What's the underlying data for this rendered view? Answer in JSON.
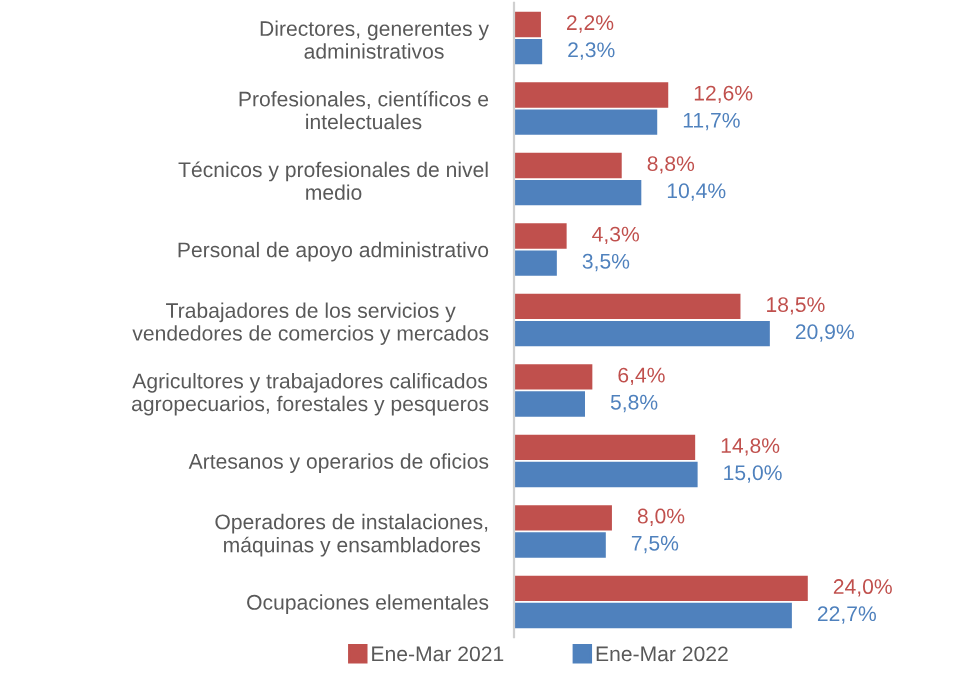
{
  "chart_data": {
    "type": "bar",
    "orientation": "horizontal",
    "legend": "bottom",
    "categories": [
      "Directores, generentes y\nadministrativos",
      "Profesionales, científicos e\nintelectuales",
      "Técnicos y profesionales de nivel\nmedio",
      "Personal de apoyo administrativo",
      "Trabajadores de los servicios y\nvendedores de comercios y mercados",
      "Agricultores y trabajadores calificados\nagropecuarios, forestales y pesqueros",
      "Artesanos y operarios de oficios",
      "Operadores de instalaciones,\nmáquinas y ensambladores",
      "Ocupaciones elementales"
    ],
    "series": [
      {
        "name": "Ene-Mar 2021",
        "color": "#c0504d",
        "values": [
          2.2,
          12.6,
          8.8,
          4.3,
          18.5,
          6.4,
          14.8,
          8.0,
          24.0
        ],
        "value_labels": [
          "2,2%",
          "12,6%",
          "8,8%",
          "4,3%",
          "18,5%",
          "6,4%",
          "14,8%",
          "8,0%",
          "24,0%"
        ]
      },
      {
        "name": "Ene-Mar 2022",
        "color": "#4f81bd",
        "values": [
          2.3,
          11.7,
          10.4,
          3.5,
          20.9,
          5.8,
          15.0,
          7.5,
          22.7
        ],
        "value_labels": [
          "2,3%",
          "11,7%",
          "10,4%",
          "3,5%",
          "20,9%",
          "5,8%",
          "15,0%",
          "7,5%",
          "22,7%"
        ]
      }
    ]
  }
}
